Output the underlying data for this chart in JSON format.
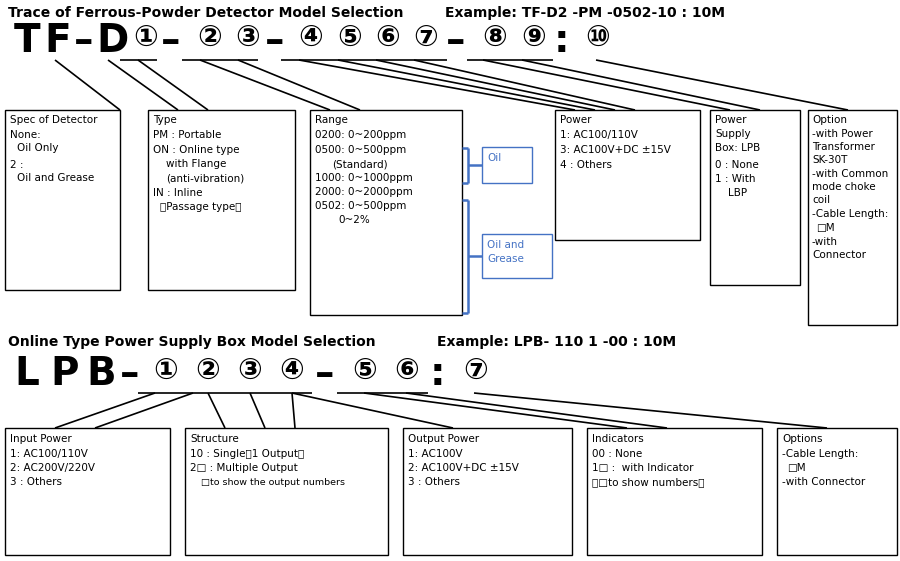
{
  "bg_color": "#ffffff",
  "title1": "Trace of Ferrous-Powder Detector Model Selection",
  "example1": "Example: TF-D2 -PM -0502-10 : 10M",
  "title2": "Online Type Power Supply Box Model Selection",
  "example2": "Example: LPB- 110 1 -00 : 10M",
  "text_color": "#000000",
  "bracket_color": "#4472c4"
}
